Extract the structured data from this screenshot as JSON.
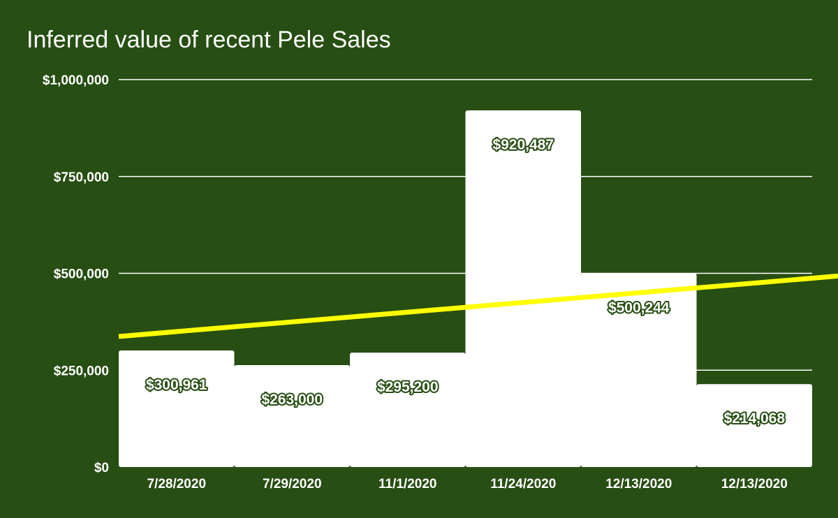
{
  "chart_data": {
    "type": "bar",
    "title": "Inferred value of recent Pele Sales",
    "categories": [
      "7/28/2020",
      "7/29/2020",
      "11/1/2020",
      "11/24/2020",
      "12/13/2020",
      "12/13/2020"
    ],
    "series": [
      {
        "values": [
          300961,
          263000,
          295200,
          920487,
          500244,
          214068
        ],
        "data_labels": [
          "$300,961",
          "$263,000",
          "$295,200",
          "$920,487",
          "$500,244",
          "$214,068"
        ]
      }
    ],
    "yticks": [
      0,
      250000,
      500000,
      750000,
      1000000
    ],
    "ytick_labels": [
      "$0",
      "$250,000",
      "$500,000",
      "$750,000",
      "$1,000,000"
    ],
    "ylim": [
      0,
      1000000
    ],
    "grid": true,
    "legend": "none",
    "trendline": {
      "type": "linear",
      "color": "#ffff00",
      "start_value": 337000,
      "end_value": 493000
    },
    "colors": {
      "background": "#274e13",
      "bar": "#ffffff",
      "text": "#ffffff",
      "trendline": "#ffff00"
    }
  }
}
